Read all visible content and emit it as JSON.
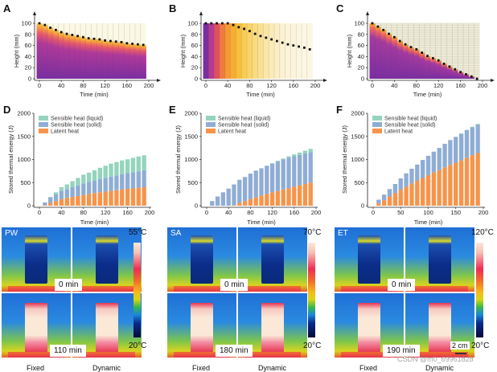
{
  "panels_top": [
    {
      "letter": "A"
    },
    {
      "letter": "B"
    },
    {
      "letter": "C"
    }
  ],
  "panels_mid": [
    {
      "letter": "D"
    },
    {
      "letter": "E"
    },
    {
      "letter": "F"
    }
  ],
  "colors": {
    "latent": "#f7944a",
    "solid": "#8fadd4",
    "liquid": "#94d4bd",
    "dot": "#111111",
    "melt_purple": "#7a2ea0",
    "melt_top": "#f9b92f",
    "bg_cream": "#fbf8e4"
  },
  "chart_data": [
    {
      "id": "A",
      "type": "heatmap",
      "title": "",
      "xlabel": "Time (min)",
      "ylabel": "Height (mm)",
      "xlim": [
        0,
        200
      ],
      "ylim": [
        0,
        100
      ],
      "xticks": [
        "0",
        "40",
        "80",
        "120",
        "160",
        "200"
      ],
      "yticks": [
        "0",
        "20",
        "40",
        "60",
        "80",
        "100"
      ],
      "x": [
        0,
        10,
        20,
        30,
        40,
        50,
        60,
        70,
        80,
        90,
        100,
        110,
        120,
        130,
        140,
        150,
        160,
        170,
        180,
        190
      ],
      "height": [
        100,
        97,
        92,
        88,
        84,
        81,
        79,
        77,
        75,
        73,
        72,
        71,
        69,
        68,
        67,
        66,
        64,
        63,
        62,
        61
      ],
      "gradient_style": "purple-to-orange melt front"
    },
    {
      "id": "B",
      "type": "heatmap",
      "title": "",
      "xlabel": "Time (min)",
      "ylabel": "Height (mm)",
      "xlim": [
        0,
        200
      ],
      "ylim": [
        0,
        100
      ],
      "xticks": [
        "0",
        "40",
        "80",
        "120",
        "160",
        "200"
      ],
      "yticks": [
        "0",
        "20",
        "40",
        "60",
        "80",
        "100"
      ],
      "x": [
        0,
        10,
        20,
        30,
        40,
        50,
        60,
        70,
        80,
        90,
        100,
        110,
        120,
        130,
        140,
        150,
        160,
        170,
        180,
        190
      ],
      "height": [
        100,
        100,
        100,
        100,
        100,
        97,
        93,
        90,
        86,
        81,
        77,
        74,
        71,
        68,
        65,
        62,
        60,
        58,
        56,
        53
      ],
      "gradient_style": "purple-orange-yellow, fades to cream"
    },
    {
      "id": "C",
      "type": "heatmap",
      "title": "",
      "xlabel": "Time (min)",
      "ylabel": "Height (mm)",
      "xlim": [
        0,
        200
      ],
      "ylim": [
        0,
        100
      ],
      "xticks": [
        "0",
        "40",
        "80",
        "120",
        "160",
        "200"
      ],
      "yticks": [
        "0",
        "20",
        "40",
        "60",
        "80",
        "100"
      ],
      "x": [
        0,
        10,
        20,
        30,
        40,
        50,
        60,
        70,
        80,
        90,
        100,
        110,
        120,
        130,
        140,
        150,
        160,
        170,
        180,
        190
      ],
      "height": [
        100,
        94,
        88,
        81,
        75,
        68,
        62,
        57,
        53,
        47,
        41,
        37,
        33,
        27,
        22,
        17,
        12,
        8,
        4,
        0
      ],
      "gradient_style": "purple bulk with orange thin melt layer"
    },
    {
      "id": "D",
      "type": "bar",
      "stacked": true,
      "xlabel": "Time (min)",
      "ylabel": "Stored thermal energy (J)",
      "xlim": [
        0,
        200
      ],
      "ylim": [
        0,
        2000
      ],
      "xticks": [
        "0",
        "40",
        "80",
        "120",
        "160",
        "200"
      ],
      "yticks": [
        "0",
        "500",
        "1000",
        "1500",
        "2000"
      ],
      "legend": [
        "Sensible heat (liquid)",
        "Sensible heat (solid)",
        "Latent heat"
      ],
      "legend_position": "top-left",
      "x": [
        10,
        20,
        30,
        40,
        50,
        60,
        70,
        80,
        90,
        100,
        110,
        120,
        130,
        140,
        150,
        160,
        170,
        180,
        190
      ],
      "series": [
        {
          "name": "Latent heat",
          "values": [
            10,
            60,
            100,
            140,
            170,
            190,
            210,
            230,
            255,
            275,
            290,
            305,
            320,
            335,
            350,
            365,
            375,
            385,
            400
          ]
        },
        {
          "name": "Sensible heat (solid)",
          "values": [
            60,
            120,
            150,
            180,
            190,
            210,
            230,
            250,
            260,
            270,
            290,
            300,
            310,
            320,
            330,
            340,
            350,
            360,
            370
          ]
        },
        {
          "name": "Sensible heat (liquid)",
          "values": [
            0,
            10,
            40,
            80,
            100,
            130,
            160,
            190,
            200,
            220,
            240,
            260,
            280,
            290,
            300,
            300,
            310,
            320,
            320
          ]
        }
      ]
    },
    {
      "id": "E",
      "type": "bar",
      "stacked": true,
      "xlabel": "Time (min)",
      "ylabel": "Stored thermal energy (J)",
      "xlim": [
        0,
        200
      ],
      "ylim": [
        0,
        2000
      ],
      "xticks": [
        "0",
        "40",
        "80",
        "120",
        "160",
        "200"
      ],
      "yticks": [
        "0",
        "500",
        "1000",
        "1500",
        "2000"
      ],
      "legend": [
        "Sensible heat (liquid)",
        "Sensible heat (solid)",
        "Latent heat"
      ],
      "legend_position": "top-left",
      "x": [
        10,
        20,
        30,
        40,
        50,
        60,
        70,
        80,
        90,
        100,
        110,
        120,
        130,
        140,
        150,
        160,
        170,
        180,
        190
      ],
      "series": [
        {
          "name": "Latent heat",
          "values": [
            0,
            0,
            0,
            0,
            10,
            60,
            100,
            140,
            180,
            220,
            255,
            290,
            320,
            350,
            380,
            410,
            440,
            470,
            500
          ]
        },
        {
          "name": "Sensible heat (solid)",
          "values": [
            100,
            200,
            290,
            370,
            450,
            500,
            520,
            555,
            580,
            590,
            610,
            620,
            640,
            650,
            660,
            660,
            660,
            660,
            660
          ]
        },
        {
          "name": "Sensible heat (liquid)",
          "values": [
            0,
            0,
            0,
            0,
            0,
            0,
            0,
            0,
            0,
            0,
            0,
            10,
            15,
            20,
            30,
            40,
            50,
            60,
            70
          ]
        }
      ]
    },
    {
      "id": "F",
      "type": "bar",
      "stacked": true,
      "xlabel": "Time (min)",
      "ylabel": "Stored thermal energy (J)",
      "xlim": [
        0,
        200
      ],
      "ylim": [
        0,
        2000
      ],
      "xticks": [
        "0",
        "50",
        "100",
        "150",
        "200"
      ],
      "yticks": [
        "0",
        "500",
        "1000",
        "1500",
        "2000"
      ],
      "legend": [
        "Sensible heat (liquid)",
        "Sensible heat (solid)",
        "Latent heat"
      ],
      "legend_position": "top-left",
      "x": [
        10,
        20,
        30,
        40,
        50,
        60,
        70,
        80,
        90,
        100,
        110,
        120,
        130,
        140,
        150,
        160,
        170,
        180,
        190
      ],
      "series": [
        {
          "name": "Latent heat",
          "values": [
            50,
            120,
            200,
            270,
            340,
            410,
            480,
            540,
            600,
            660,
            720,
            770,
            830,
            880,
            930,
            980,
            1040,
            1090,
            1140
          ]
        },
        {
          "name": "Sensible heat (solid)",
          "values": [
            80,
            120,
            160,
            200,
            250,
            290,
            320,
            350,
            390,
            420,
            450,
            480,
            510,
            540,
            560,
            580,
            600,
            610,
            620
          ]
        },
        {
          "name": "Sensible heat (liquid)",
          "values": [
            0,
            0,
            0,
            0,
            0,
            0,
            0,
            0,
            0,
            0,
            0,
            0,
            0,
            0,
            0,
            0,
            0,
            10,
            10
          ]
        }
      ]
    }
  ],
  "thermal": [
    {
      "sample": "PW",
      "t0": "0 min",
      "t1": "110 min",
      "max": "55°C",
      "min": "20°C",
      "fixed": "Fixed",
      "dynamic": "Dynamic"
    },
    {
      "sample": "SA",
      "t0": "0 min",
      "t1": "180 min",
      "max": "70°C",
      "min": "20°C",
      "fixed": "Fixed",
      "dynamic": "Dynamic"
    },
    {
      "sample": "ET",
      "t0": "0 min",
      "t1": "190 min",
      "max": "120°C",
      "min": "20°C",
      "fixed": "Fixed",
      "dynamic": "Dynamic",
      "scale": "2 cm"
    }
  ],
  "watermark": "CSDN @m0_69961828"
}
